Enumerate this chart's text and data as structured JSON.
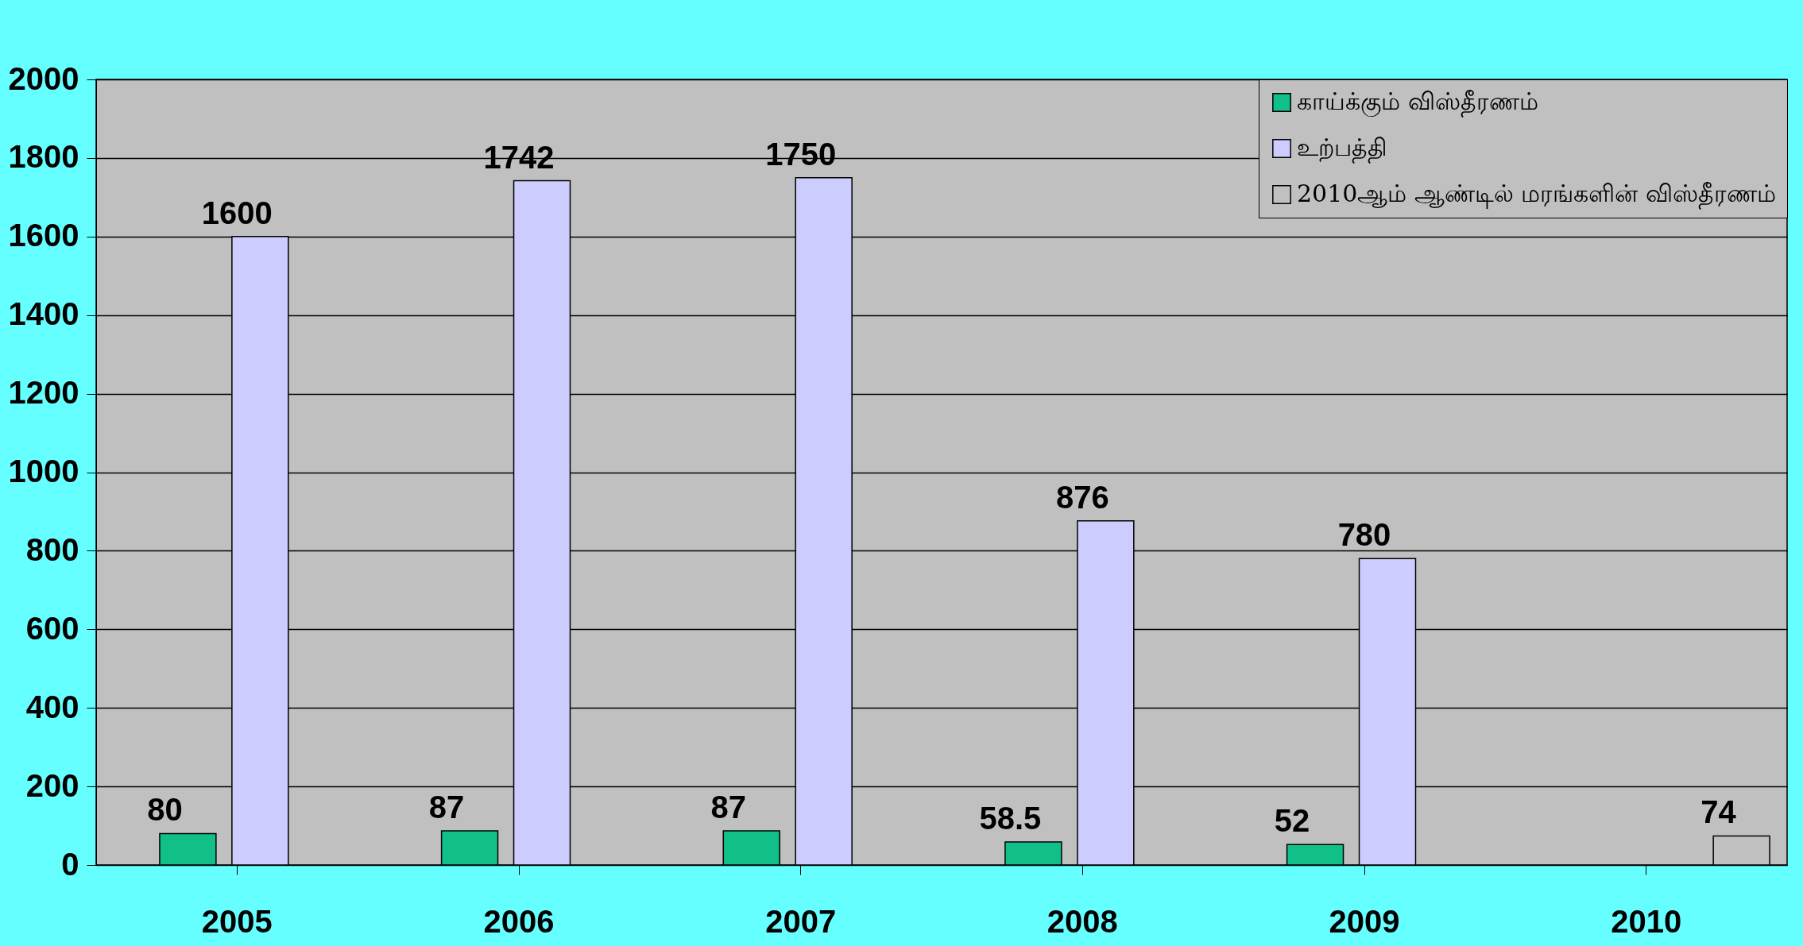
{
  "chart_data": {
    "type": "bar",
    "categories": [
      "2005",
      "2006",
      "2007",
      "2008",
      "2009",
      "2010"
    ],
    "series": [
      {
        "name": "காய்க்கும் விஸ்தீரணம்",
        "color": "#10c088",
        "values": [
          80,
          87,
          87,
          58.5,
          52,
          null
        ]
      },
      {
        "name": "உற்பத்தி",
        "color": "#ccccff",
        "values": [
          1600,
          1742,
          1750,
          876,
          780,
          null
        ]
      },
      {
        "name": "2010ஆம் ஆண்டில் மரங்களின் விஸ்தீரணம்",
        "color": "#c0c0c0",
        "values": [
          null,
          null,
          null,
          null,
          null,
          74
        ]
      }
    ],
    "ylim": [
      0,
      2000
    ],
    "yticks": [
      0,
      200,
      400,
      600,
      800,
      1000,
      1200,
      1400,
      1600,
      1800,
      2000
    ],
    "grid": "y",
    "legend": "top right",
    "data_labels": true
  }
}
